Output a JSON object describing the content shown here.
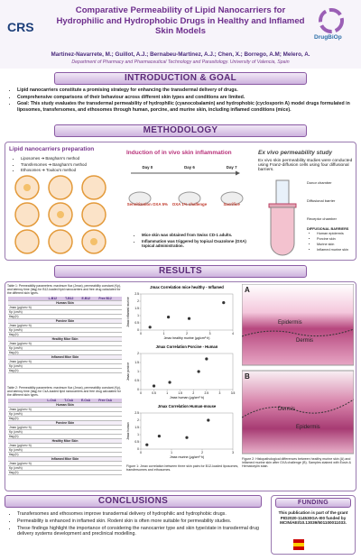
{
  "header": {
    "title": "Comparative Permeability of Lipid Nanocarriers for Hydrophilic and Hydrophobic Drugs in Healthy and Inflamed Skin Models",
    "logo_left": "CRS",
    "logo_right": "DrugBiOp",
    "authors": "Martinez-Navarrete, M.; Guillot, A.J.; Bernabeu-Martinez, A.J.; Chen, X.; Borrego, A.M; Melero, A.",
    "affiliation": "Department of Pharmacy and Pharmaceutical Technology and Parasitology. University of Valencia, Spain"
  },
  "introduction": {
    "heading": "INTRODUCTION & GOAL",
    "bullets": [
      "Lipid nanocarriers constitute a promising strategy for enhancing the transdermal delivery of drugs.",
      "Comprehensive comparisons of their behaviour across different skin types and conditions are limited.",
      "Goal: This study evaluates the transdermal permeability of hydrophilic (cyanocobalamin) and hydrophobic (cyclosporin A) model drugs formulated in liposomes, transfersomes, and ethosomes through human, porcine, and murine skin, including inflamed conditions (mice)."
    ]
  },
  "methodology": {
    "heading": "METHODOLOGY",
    "preparation": {
      "title": "Lipid nanocarriers preparation",
      "items": [
        "Liposomes ➔ Bangham's method",
        "Transfersomes ➔ Bangham's method",
        "Ethosomes ➔ Touitou's method"
      ]
    },
    "induction": {
      "title": "Induction of in vivo skin inflammation",
      "days": [
        "Day 0",
        "Day 6",
        "Day 7"
      ],
      "steps": [
        "Sensitization OXA 5%",
        "OXA 1% challenge",
        "Sacrifice"
      ],
      "bullets": [
        "Mice skin was obtained from Swiss CD-1 adults.",
        "Inflammation was triggered by topical Oxazolone (OXA) topical administration."
      ]
    },
    "ex_vivo": {
      "title": "Ex vivo permeability study",
      "text": "Ex vivo skin permeability studies were conducted using Franz-diffusion cells using four diffusional barriers.",
      "labels": [
        "Donor chamber",
        "Diffusional barrier",
        "Receptor chamber"
      ],
      "barriers_title": "DIFFUSIONAL BARRIERS",
      "barriers": [
        "Human epidermis",
        "Porcine skin",
        "Murine skin",
        "Inflamed murine skin"
      ]
    }
  },
  "results": {
    "heading": "RESULTS",
    "table1": {
      "caption": "Table 1: Permeability parameters: maximum flux (Jmax), permeability constant (Kp), and latency time (tlag) for B12-loaded lipid nanocarriers and free drug calculated for the different skin types.",
      "columns": [
        "L-B12",
        "T-B12",
        "E-B12",
        "Free B12"
      ],
      "sections": [
        {
          "name": "Human Skin",
          "rows": [
            "Jmax (µg/cm²·h)",
            "Kp (cm/h)",
            "tlag (h)"
          ]
        },
        {
          "name": "Porcine Skin",
          "rows": [
            "Jmax (µg/cm²·h)",
            "Kp (cm/h)",
            "tlag (h)"
          ]
        },
        {
          "name": "Healthy Mice Skin",
          "rows": [
            "Jmax (µg/cm²·h)",
            "Kp (cm/h)",
            "tlag (h)"
          ]
        },
        {
          "name": "Inflamed Mice Skin",
          "rows": [
            "Jmax (µg/cm²·h)",
            "Kp (cm/h)",
            "tlag (h)"
          ]
        }
      ]
    },
    "table2": {
      "caption": "Table 2: Permeability parameters: maximum flux (Jmax), permeability constant (Kp), and latency time (tlag) for CsA-loaded lipid nanocarriers and free drug calculated for the different skin types.",
      "columns": [
        "L-CsA",
        "T-CsA",
        "E-CsA",
        "Free CsA"
      ],
      "sections": [
        {
          "name": "Human Skin",
          "rows": [
            "Jmax (µg/cm²·h)",
            "Kp (cm/h)",
            "tlag (h)"
          ]
        },
        {
          "name": "Porcine Skin",
          "rows": [
            "Jmax (µg/cm²·h)",
            "Kp (cm/h)",
            "tlag (h)"
          ]
        },
        {
          "name": "Healthy Mice Skin",
          "rows": [
            "Jmax (µg/cm²·h)",
            "Kp (cm/h)",
            "tlag (h)"
          ]
        },
        {
          "name": "Inflamed Mice Skin",
          "rows": [
            "Jmax (µg/cm²·h)",
            "Kp (cm/h)",
            "tlag (h)"
          ]
        }
      ]
    },
    "charts": [
      {
        "type": "scatter",
        "title": "Jmax Correlation mice healthy - Inflamed",
        "x_label": "Jmax healthy murine (µg/cm²·h)",
        "y_label": "Jmax inflamed murine",
        "x": [
          0.4,
          1.2,
          2.1,
          3.6
        ],
        "y": [
          0.2,
          0.9,
          0.8,
          1.9
        ],
        "xlim": [
          0,
          4
        ],
        "ylim": [
          0,
          2.5
        ],
        "xticks": [
          0,
          1,
          2,
          3,
          4
        ],
        "yticks": [
          0,
          0.5,
          1,
          1.5,
          2,
          2.5
        ]
      },
      {
        "type": "scatter",
        "title": "Jmax Correlation Porcine - Human",
        "x_label": "Jmax human (µg/cm²·h)",
        "y_label": "Jmax porcine",
        "x": [
          0.5,
          1.1,
          2.2,
          2.5
        ],
        "y": [
          0.2,
          0.4,
          1.0,
          1.7
        ],
        "xlim": [
          0,
          3.5
        ],
        "ylim": [
          0,
          2
        ],
        "xticks": [
          0,
          0.5,
          1,
          1.5,
          2,
          2.5,
          3,
          3.5
        ],
        "yticks": [
          0,
          0.5,
          1,
          1.5,
          2
        ]
      },
      {
        "type": "scatter",
        "title": "Jmax Correlation Human-mouse",
        "x_label": "Jmax murine (µg/cm²·h)",
        "y_label": "Jmax human",
        "x": [
          0.2,
          0.6,
          1.5,
          2.2
        ],
        "y": [
          0.3,
          0.9,
          0.8,
          2.0
        ],
        "xlim": [
          0,
          3
        ],
        "ylim": [
          0,
          2.5
        ],
        "xticks": [
          0,
          1,
          2,
          3
        ],
        "yticks": [
          0,
          0.5,
          1,
          1.5,
          2,
          2.5
        ]
      }
    ],
    "figure1_caption": "Figure 1: Jmax correlation between three skin pairs for B12-loaded liposomes, transfersomes and ethosomes.",
    "images": [
      {
        "panel": "A",
        "labels": [
          "Epidermis",
          "Dermis"
        ]
      },
      {
        "panel": "B",
        "labels": [
          "Dermis",
          "Epidermis"
        ]
      }
    ],
    "figure2_caption": "Figure 2: Histopathological differences between healthy murine skin (A) and inflamed murine skin after OXA challenge (B). Samples stained with Eosin & Hematoxylin stain."
  },
  "conclusions": {
    "heading": "CONCLUSIONS",
    "bullets": [
      "Transfersomes and ethosomes improve transdermal delivery of hydrophilic and hydrophobic drugs.",
      "Permeability is enhanced in inflamed skin. Rodent skin is often more suitable for permeability studies.",
      "These findings highlight the importance of considering the nanocarrier type and skin type/state in transdermal drug delivery systems development and preclinical modelling."
    ]
  },
  "funding": {
    "heading": "FUNDING",
    "text": "This publication is part of the grant PID2020-114530GA-I00 funded by MCIN/AEI/10.13039/501100011033."
  }
}
